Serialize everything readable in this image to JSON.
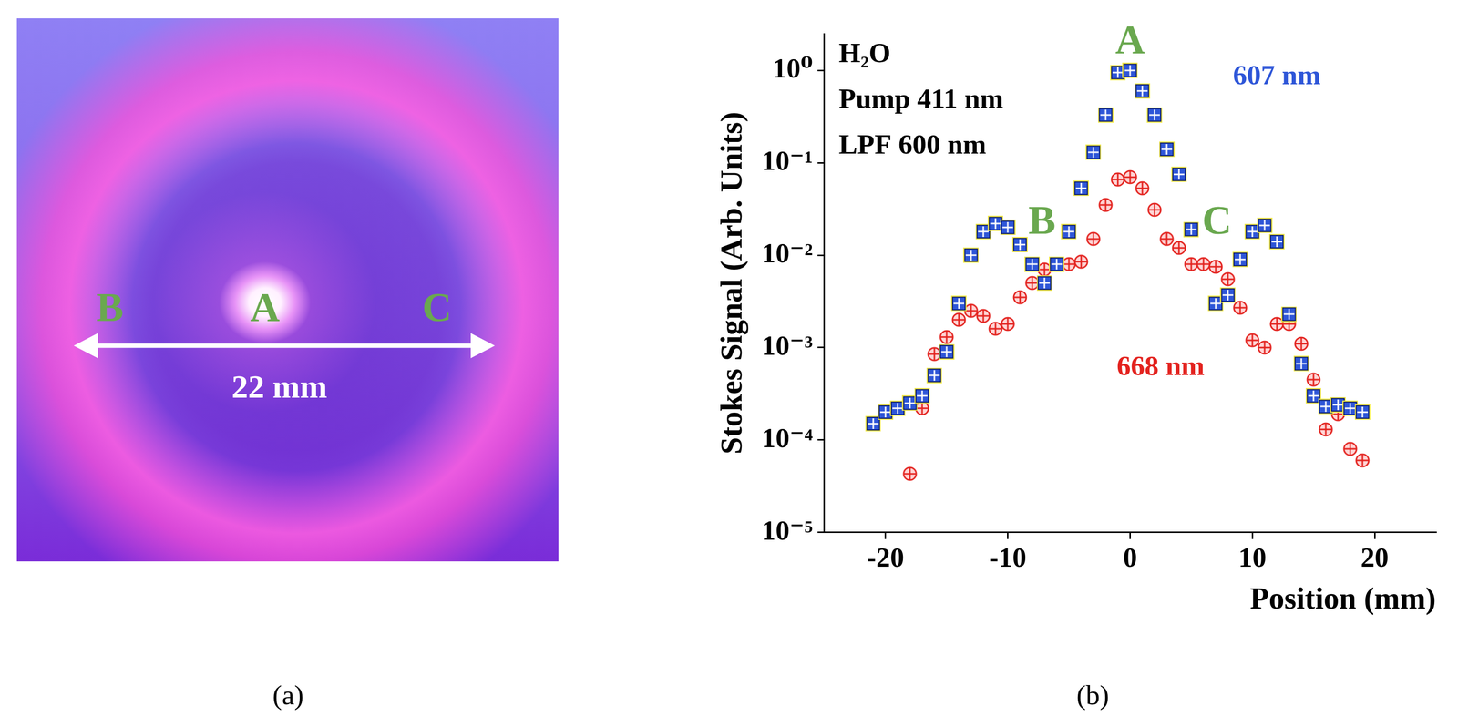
{
  "photo": {
    "caption": "(a)",
    "labels": [
      "B",
      "A",
      "C"
    ],
    "label_color": "#6aa84f",
    "scale_bar": "22 mm"
  },
  "chart_data": {
    "type": "scatter",
    "caption": "(b)",
    "x_label": "Position (mm)",
    "y_label": "Stokes Signal (Arb. Units)",
    "log": "y",
    "grid": false,
    "xlim": [
      -25,
      25
    ],
    "xticks": [
      -20,
      -10,
      0,
      10,
      20
    ],
    "ylim": [
      1e-05,
      2.5
    ],
    "yticks": [
      {
        "value": 1e-05,
        "label": "10⁻⁵"
      },
      {
        "value": 0.0001,
        "label": "10⁻⁴"
      },
      {
        "value": 0.001,
        "label": "10⁻³"
      },
      {
        "value": 0.01,
        "label": "10⁻²"
      },
      {
        "value": 0.1,
        "label": "10⁻¹"
      },
      {
        "value": 1,
        "label": "10⁰"
      }
    ],
    "notes": [
      "H₂O",
      "Pump 411 nm",
      "LPF 600 nm"
    ],
    "annotations": [
      {
        "text": "A",
        "x": 0,
        "y": 2.0,
        "color": "#6aa84f"
      },
      {
        "text": "B",
        "x": -7.2,
        "y": 0.022,
        "color": "#6aa84f"
      },
      {
        "text": "C",
        "x": 7.1,
        "y": 0.022,
        "color": "#6aa84f"
      }
    ],
    "series": [
      {
        "name": "607 nm",
        "color": "#2e56d8",
        "marker": "square",
        "label_x": 12,
        "label_y": 0.85,
        "x": [
          -21,
          -20,
          -19,
          -18,
          -17,
          -16,
          -15,
          -14,
          -13,
          -12,
          -11,
          -10,
          -9,
          -8,
          -7,
          -6,
          -5,
          -4,
          -3,
          -2,
          -1,
          0,
          1,
          2,
          3,
          4,
          5,
          7,
          8,
          9,
          10,
          11,
          12,
          13,
          14,
          15,
          16,
          17,
          18,
          19
        ],
        "values": [
          0.00015,
          0.0002,
          0.00022,
          0.00025,
          0.0003,
          0.0005,
          0.0009,
          0.003,
          0.01,
          0.018,
          0.022,
          0.02,
          0.013,
          0.008,
          0.005,
          0.008,
          0.018,
          0.053,
          0.13,
          0.33,
          0.95,
          1.0,
          0.6,
          0.33,
          0.14,
          0.075,
          0.019,
          0.003,
          0.0037,
          0.009,
          0.018,
          0.021,
          0.014,
          0.0023,
          0.00067,
          0.0003,
          0.00023,
          0.00024,
          0.00022,
          0.0002
        ]
      },
      {
        "name": "668 nm",
        "color": "#e3221e",
        "marker": "circle",
        "label_x": 2.5,
        "label_y": 0.0006,
        "x": [
          -18,
          -17,
          -16,
          -15,
          -14,
          -13,
          -12,
          -11,
          -10,
          -9,
          -8,
          -7,
          -6,
          -5,
          -4,
          -3,
          -2,
          -1,
          0,
          1,
          2,
          3,
          4,
          5,
          6,
          7,
          8,
          9,
          10,
          11,
          12,
          13,
          14,
          15,
          16,
          17,
          18,
          19
        ],
        "values": [
          4.3e-05,
          0.00022,
          0.00085,
          0.0013,
          0.002,
          0.0025,
          0.0022,
          0.0016,
          0.0018,
          0.0035,
          0.005,
          0.007,
          0.008,
          0.008,
          0.0085,
          0.015,
          0.035,
          0.066,
          0.07,
          0.053,
          0.031,
          0.015,
          0.012,
          0.008,
          0.008,
          0.0075,
          0.0055,
          0.0027,
          0.0012,
          0.001,
          0.0018,
          0.0018,
          0.0011,
          0.00045,
          0.00013,
          0.00019,
          8e-05,
          6e-05
        ]
      }
    ]
  }
}
